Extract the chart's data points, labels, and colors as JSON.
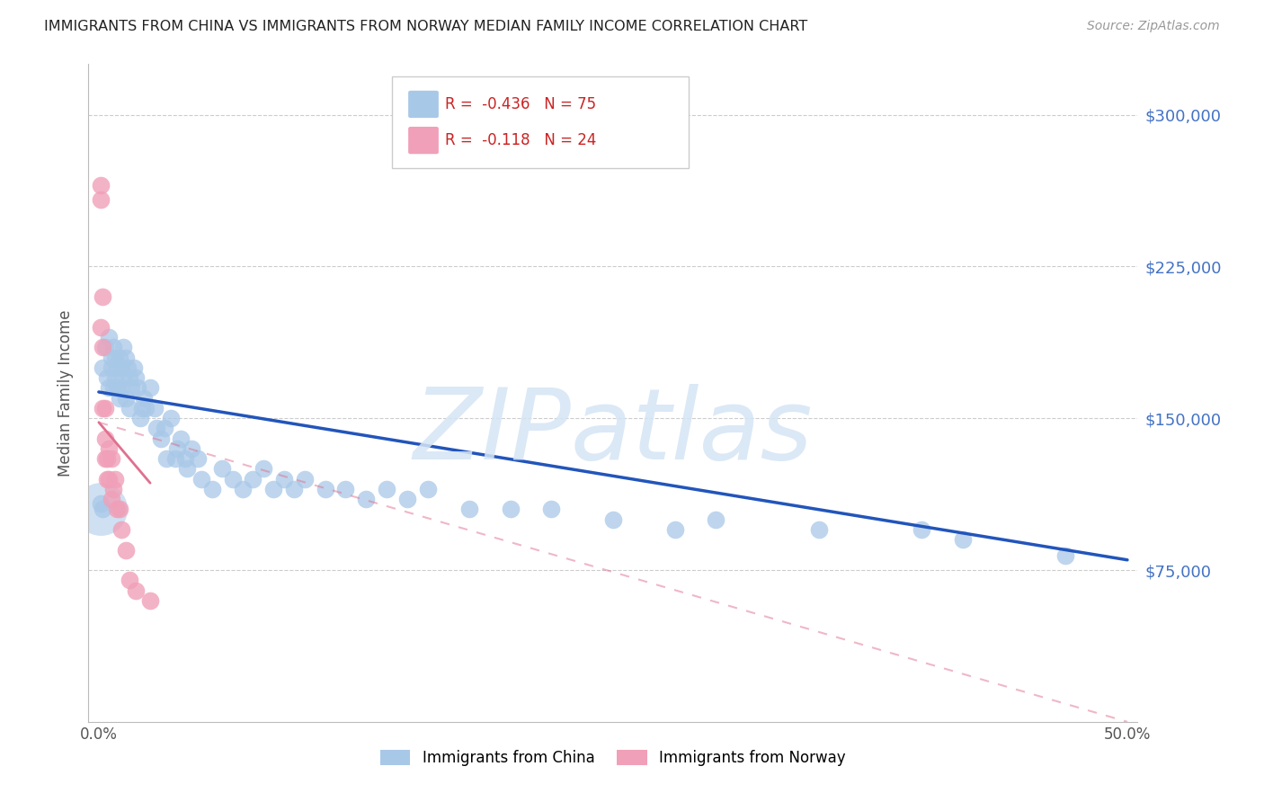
{
  "title": "IMMIGRANTS FROM CHINA VS IMMIGRANTS FROM NORWAY MEDIAN FAMILY INCOME CORRELATION CHART",
  "source": "Source: ZipAtlas.com",
  "ylabel": "Median Family Income",
  "color_china": "#a8c8e8",
  "color_norway": "#f0a0b8",
  "line_color_china": "#2255bb",
  "line_color_norway": "#e07090",
  "watermark_color": "#d5e5f5",
  "legend_label_china": "Immigrants from China",
  "legend_label_norway": "Immigrants from Norway",
  "china_x": [
    0.002,
    0.003,
    0.004,
    0.005,
    0.005,
    0.006,
    0.006,
    0.007,
    0.007,
    0.008,
    0.008,
    0.009,
    0.009,
    0.01,
    0.01,
    0.011,
    0.011,
    0.012,
    0.012,
    0.013,
    0.013,
    0.014,
    0.015,
    0.015,
    0.016,
    0.017,
    0.018,
    0.019,
    0.02,
    0.021,
    0.022,
    0.023,
    0.025,
    0.027,
    0.028,
    0.03,
    0.032,
    0.033,
    0.035,
    0.037,
    0.038,
    0.04,
    0.042,
    0.043,
    0.045,
    0.048,
    0.05,
    0.055,
    0.06,
    0.065,
    0.07,
    0.075,
    0.08,
    0.085,
    0.09,
    0.095,
    0.1,
    0.11,
    0.12,
    0.13,
    0.14,
    0.15,
    0.16,
    0.18,
    0.2,
    0.22,
    0.25,
    0.28,
    0.3,
    0.35,
    0.4,
    0.42,
    0.47,
    0.001,
    0.002
  ],
  "china_y": [
    175000,
    185000,
    170000,
    190000,
    165000,
    180000,
    175000,
    185000,
    165000,
    180000,
    170000,
    175000,
    165000,
    180000,
    160000,
    175000,
    165000,
    185000,
    170000,
    180000,
    160000,
    175000,
    170000,
    155000,
    165000,
    175000,
    170000,
    165000,
    150000,
    155000,
    160000,
    155000,
    165000,
    155000,
    145000,
    140000,
    145000,
    130000,
    150000,
    130000,
    135000,
    140000,
    130000,
    125000,
    135000,
    130000,
    120000,
    115000,
    125000,
    120000,
    115000,
    120000,
    125000,
    115000,
    120000,
    115000,
    120000,
    115000,
    115000,
    110000,
    115000,
    110000,
    115000,
    105000,
    105000,
    105000,
    100000,
    95000,
    100000,
    95000,
    95000,
    90000,
    82000,
    108000,
    105000
  ],
  "china_sizes": [
    200,
    200,
    200,
    200,
    200,
    200,
    200,
    200,
    200,
    200,
    200,
    200,
    200,
    200,
    200,
    200,
    200,
    200,
    200,
    200,
    200,
    200,
    200,
    200,
    200,
    200,
    200,
    200,
    200,
    200,
    200,
    200,
    200,
    200,
    200,
    200,
    200,
    200,
    200,
    200,
    200,
    200,
    200,
    200,
    200,
    200,
    200,
    200,
    200,
    200,
    200,
    200,
    200,
    200,
    200,
    200,
    200,
    200,
    200,
    200,
    200,
    200,
    200,
    200,
    200,
    200,
    200,
    200,
    200,
    200,
    200,
    200,
    200,
    200,
    200
  ],
  "china_large_x": [
    0.001
  ],
  "china_large_y": [
    105000
  ],
  "china_large_size": [
    1800
  ],
  "norway_x": [
    0.001,
    0.001,
    0.001,
    0.002,
    0.002,
    0.002,
    0.003,
    0.003,
    0.003,
    0.004,
    0.004,
    0.005,
    0.005,
    0.006,
    0.006,
    0.007,
    0.008,
    0.009,
    0.01,
    0.011,
    0.013,
    0.015,
    0.018,
    0.025
  ],
  "norway_y": [
    265000,
    258000,
    195000,
    210000,
    185000,
    155000,
    155000,
    130000,
    140000,
    130000,
    120000,
    135000,
    120000,
    130000,
    110000,
    115000,
    120000,
    105000,
    105000,
    95000,
    85000,
    70000,
    65000,
    60000
  ],
  "norway_sizes": [
    200,
    200,
    200,
    200,
    200,
    200,
    200,
    200,
    200,
    200,
    200,
    200,
    200,
    200,
    200,
    200,
    200,
    200,
    200,
    200,
    200,
    200,
    200,
    200
  ],
  "xlim": [
    -0.005,
    0.505
  ],
  "ylim": [
    0,
    325000
  ],
  "ytick_vals": [
    75000,
    150000,
    225000,
    300000
  ],
  "ytick_labels": [
    "$75,000",
    "$150,000",
    "$225,000",
    "$300,000"
  ],
  "china_line_x0": 0.0,
  "china_line_x1": 0.5,
  "china_line_y0": 163000,
  "china_line_y1": 80000,
  "norway_line_x0": 0.0,
  "norway_line_x1": 0.5,
  "norway_line_y0": 148000,
  "norway_line_y1": 0
}
